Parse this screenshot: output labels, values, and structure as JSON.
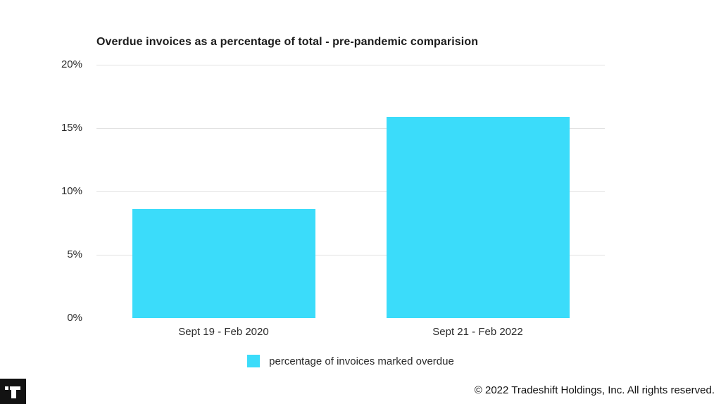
{
  "chart_data": {
    "type": "bar",
    "title": "Overdue invoices as a percentage of total - pre-pandemic comparision",
    "categories": [
      "Sept 19 - Feb 2020",
      "Sept 21 - Feb 2022"
    ],
    "values": [
      8.6,
      15.9
    ],
    "series_name": "percentage of invoices marked overdue",
    "xlabel": "",
    "ylabel": "",
    "ylim": [
      0,
      20
    ],
    "yticks": [
      20,
      15,
      10,
      5,
      0
    ],
    "ytick_labels": [
      "20%",
      "15%",
      "10%",
      "5%",
      "0%"
    ],
    "grid": "horizontal gridlines at 5% steps, none at 0%",
    "legend_position": "bottom-center",
    "bar_color": "#3BDCFA",
    "gridline_color": "#e2e2e2"
  },
  "legend": {
    "label": "percentage of invoices marked overdue",
    "swatch_color": "#3BDCFA"
  },
  "footer": {
    "copyright": "© 2022 Tradeshift Holdings, Inc. All rights reserved.",
    "logo": "tradeshift-logo"
  }
}
